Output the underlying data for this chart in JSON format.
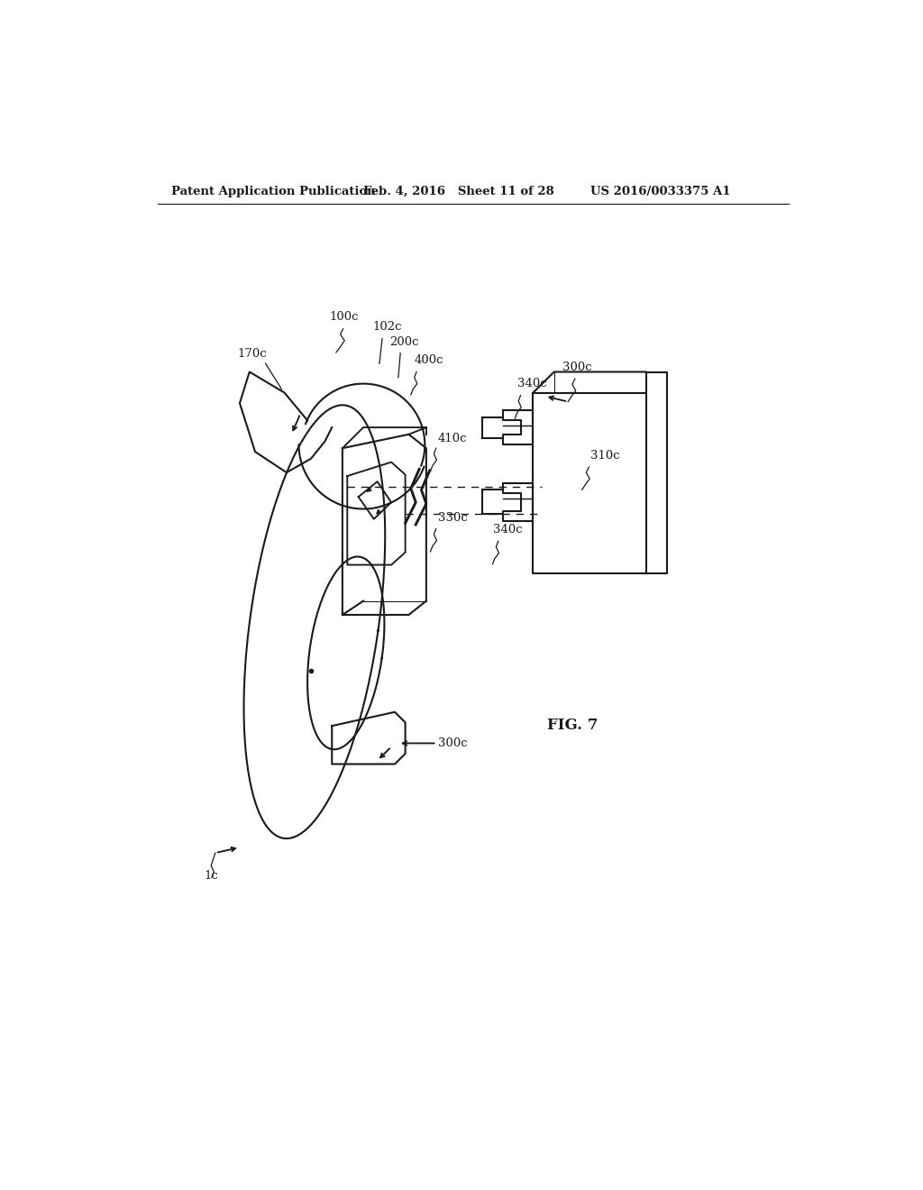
{
  "bg_color": "#ffffff",
  "header_left": "Patent Application Publication",
  "header_mid": "Feb. 4, 2016   Sheet 11 of 28",
  "header_right": "US 2016/0033375 A1",
  "fig_label": "FIG. 7",
  "line_color": "#1a1a1a",
  "text_color": "#1a1a1a"
}
